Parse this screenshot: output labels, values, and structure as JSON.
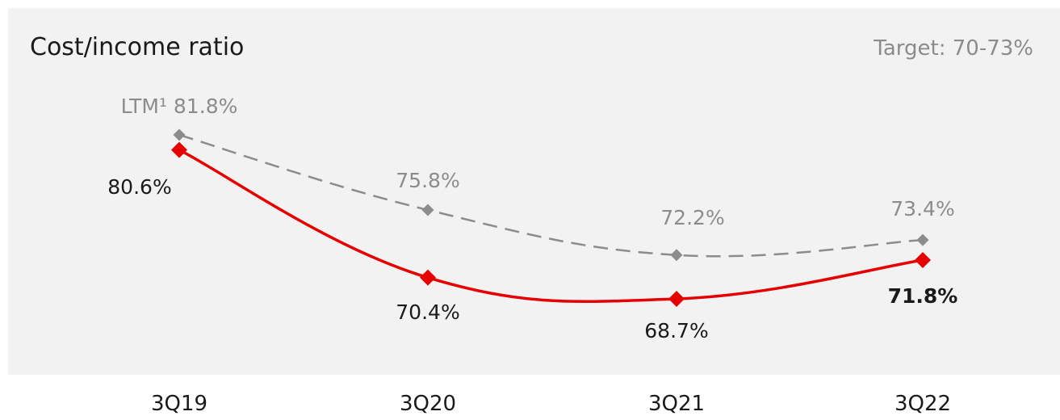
{
  "chart_data": {
    "type": "line",
    "title": "Cost/income ratio",
    "target_note": "Target: 70-73%",
    "categories": [
      "3Q19",
      "3Q20",
      "3Q21",
      "3Q22"
    ],
    "series": [
      {
        "labels": [
          "80.6%",
          "70.4%",
          "68.7%",
          "71.8%"
        ],
        "values": [
          80.6,
          70.4,
          68.7,
          71.8
        ],
        "color": "#e60000",
        "style": "solid",
        "last_label_bold": true
      },
      {
        "name": "LTM¹",
        "labels": [
          "LTM¹ 81.8%",
          "75.8%",
          "72.2%",
          "73.4%"
        ],
        "values": [
          81.8,
          75.8,
          72.2,
          73.4
        ],
        "color": "#8c8c8c",
        "style": "dashed"
      }
    ],
    "colors": {
      "panel_background": "#f2f2f2",
      "title_text": "#1a1a1a",
      "target_text": "#8c8c8c",
      "ltm_label_text": "#8c8c8c",
      "main_label_text": "#1a1a1a",
      "category_text": "#1a1a1a"
    }
  }
}
